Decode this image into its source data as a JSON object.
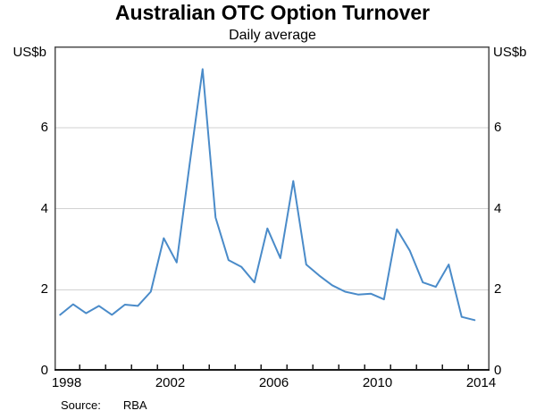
{
  "title": "Australian OTC Option Turnover",
  "subtitle": "Daily average",
  "source": {
    "label": "Source:",
    "value": "RBA"
  },
  "axis": {
    "left_unit": "US$b",
    "right_unit": "US$b",
    "y_tick_labels": [
      "0",
      "2",
      "4",
      "6"
    ],
    "x_tick_labels": [
      "1998",
      "2002",
      "2006",
      "2010",
      "2014"
    ]
  },
  "colors": {
    "line": "#4a8bc9",
    "grid": "#d2d2d2",
    "frame": "#4d4d4d",
    "axis": "#1a1a1a",
    "text": "#000000"
  },
  "chart_data": {
    "type": "line",
    "title": "Australian OTC Option Turnover",
    "subtitle": "Daily average",
    "xlabel": "",
    "ylabel": "US$b",
    "ylim": [
      0,
      8
    ],
    "y_gridlines": [
      2,
      4,
      6
    ],
    "y_tick_values": [
      0,
      2,
      4,
      6
    ],
    "xlim": [
      1998.0,
      2014.8
    ],
    "x_label_years": [
      1998,
      2002,
      2006,
      2010,
      2014
    ],
    "x_minor_tick_years": [
      1999,
      2000,
      2001,
      2002,
      2003,
      2004,
      2005,
      2006,
      2007,
      2008,
      2009,
      2010,
      2011,
      2012,
      2013,
      2014
    ],
    "grid": true,
    "legend": "none",
    "frequency": "semiannual",
    "series": [
      {
        "name": "Australian OTC option turnover, daily average (US$b)",
        "x": [
          1998.25,
          1998.75,
          1999.25,
          1999.75,
          2000.25,
          2000.75,
          2001.25,
          2001.75,
          2002.25,
          2002.75,
          2003.25,
          2003.75,
          2004.25,
          2004.75,
          2005.25,
          2005.75,
          2006.25,
          2006.75,
          2007.25,
          2007.75,
          2008.25,
          2008.75,
          2009.25,
          2009.75,
          2010.25,
          2010.75,
          2011.25,
          2011.75,
          2012.25,
          2012.75,
          2013.25,
          2013.75,
          2014.25
        ],
        "y": [
          1.38,
          1.64,
          1.42,
          1.6,
          1.38,
          1.63,
          1.6,
          1.95,
          3.27,
          2.67,
          5.1,
          7.44,
          3.78,
          2.73,
          2.56,
          2.18,
          3.51,
          2.78,
          4.68,
          2.62,
          2.35,
          2.11,
          1.95,
          1.88,
          1.9,
          1.76,
          3.49,
          2.96,
          2.18,
          2.07,
          2.62,
          1.33,
          1.25
        ]
      }
    ]
  }
}
